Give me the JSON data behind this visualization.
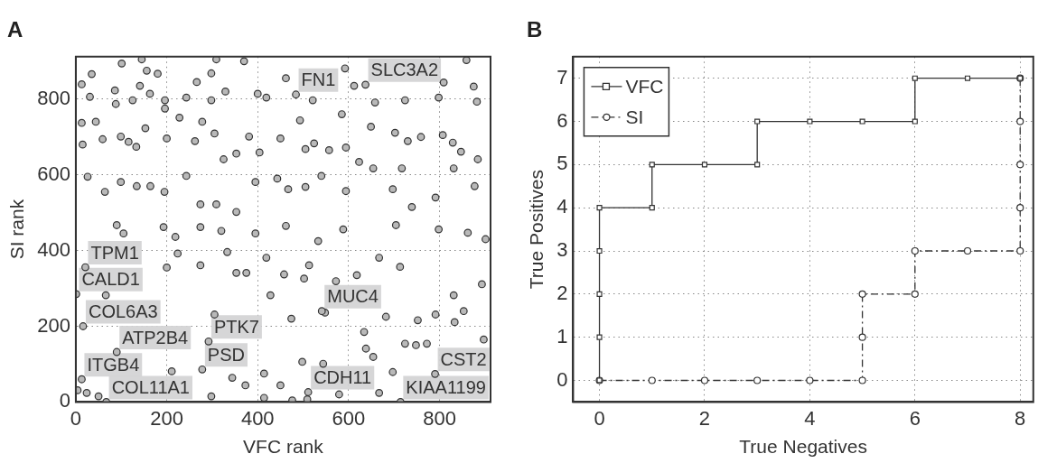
{
  "chart_data": [
    {
      "type": "scatter",
      "title": "A",
      "xlabel": "VFC rank",
      "ylabel": "SI rank",
      "color": "#b9b9b9",
      "marker": "circle",
      "xlim": [
        0,
        912
      ],
      "ylim": [
        0,
        912
      ],
      "xticks": [
        0,
        200,
        400,
        600,
        800
      ],
      "yticks": [
        0,
        200,
        400,
        600,
        800
      ],
      "grid": true,
      "x": [
        13,
        31,
        35,
        101,
        145,
        156,
        180,
        309,
        370,
        298,
        13,
        44,
        15,
        88,
        141,
        86,
        125,
        163,
        196,
        243,
        266,
        298,
        329,
        400,
        419,
        462,
        521,
        592,
        612,
        658,
        724,
        798,
        809,
        859,
        875,
        882,
        59,
        99,
        116,
        133,
        153,
        196,
        200,
        228,
        262,
        278,
        305,
        325,
        353,
        381,
        404,
        450,
        493,
        505,
        524,
        557,
        585,
        594,
        623,
        649,
        702,
        730,
        759,
        807,
        829,
        847,
        884,
        26,
        64,
        99,
        134,
        164,
        195,
        243,
        274,
        309,
        353,
        395,
        443,
        467,
        505,
        540,
        594,
        654,
        697,
        717,
        739,
        791,
        831,
        877,
        90,
        105,
        193,
        219,
        274,
        320,
        395,
        462,
        533,
        588,
        704,
        798,
        862,
        901,
        200,
        224,
        274,
        305,
        333,
        353,
        375,
        419,
        428,
        458,
        474,
        502,
        513,
        548,
        572,
        618,
        634,
        667,
        682,
        713,
        752,
        772,
        791,
        831,
        853,
        893,
        897,
        66,
        211,
        344,
        373,
        414,
        450,
        476,
        498,
        544,
        579,
        638,
        654,
        667,
        697,
        724,
        748,
        833,
        4,
        24,
        50,
        298,
        414,
        509,
        484,
        637,
        21,
        1,
        541,
        16,
        292,
        90,
        278,
        13,
        511,
        790,
        67,
        714
      ],
      "values": [
        839,
        806,
        866,
        894,
        905,
        875,
        867,
        905,
        900,
        868,
        737,
        740,
        680,
        787,
        835,
        823,
        797,
        814,
        797,
        804,
        845,
        797,
        820,
        814,
        804,
        855,
        797,
        881,
        835,
        791,
        797,
        804,
        844,
        903,
        833,
        793,
        694,
        701,
        687,
        674,
        723,
        775,
        696,
        751,
        689,
        740,
        709,
        641,
        656,
        701,
        659,
        696,
        744,
        668,
        683,
        665,
        760,
        672,
        634,
        727,
        711,
        689,
        700,
        705,
        685,
        661,
        641,
        595,
        555,
        581,
        570,
        570,
        555,
        597,
        522,
        522,
        502,
        581,
        590,
        562,
        568,
        597,
        557,
        617,
        562,
        617,
        515,
        540,
        617,
        570,
        467,
        445,
        462,
        436,
        462,
        452,
        445,
        465,
        425,
        456,
        467,
        456,
        447,
        430,
        355,
        392,
        361,
        231,
        396,
        341,
        341,
        381,
        282,
        337,
        220,
        326,
        361,
        236,
        319,
        335,
        185,
        381,
        225,
        357,
        216,
        154,
        231,
        282,
        240,
        311,
        165,
        282,
        81,
        64,
        44,
        75,
        44,
        4,
        106,
        101,
        20,
        141,
        119,
        24,
        79,
        154,
        150,
        211,
        31,
        24,
        15,
        15,
        11,
        7,
        812,
        838,
        356,
        285,
        240,
        200,
        160,
        132,
        86,
        60,
        26,
        74,
        0,
        0
      ],
      "annotations": [
        {
          "text": "FN1",
          "x": 484,
          "y": 812
        },
        {
          "text": "SLC3A2",
          "x": 637,
          "y": 838
        },
        {
          "text": "TPM1",
          "x": 21,
          "y": 356
        },
        {
          "text": "CALD1",
          "x": 1,
          "y": 285
        },
        {
          "text": "MUC4",
          "x": 541,
          "y": 240
        },
        {
          "text": "COL6A3",
          "x": 16,
          "y": 200
        },
        {
          "text": "PTK7",
          "x": 292,
          "y": 160
        },
        {
          "text": "ATP2B4",
          "x": 90,
          "y": 132
        },
        {
          "text": "PSD",
          "x": 278,
          "y": 86
        },
        {
          "text": "ITGB4",
          "x": 13,
          "y": 60
        },
        {
          "text": "CDH11",
          "x": 511,
          "y": 26
        },
        {
          "text": "CST2",
          "x": 790,
          "y": 74
        },
        {
          "text": "COL11A1",
          "x": 67,
          "y": 0
        },
        {
          "text": "KIAA1199",
          "x": 714,
          "y": 0
        }
      ]
    },
    {
      "type": "line",
      "title": "B",
      "xlabel": "True Negatives",
      "ylabel": "True Positives",
      "xlim": [
        -0.5,
        8.25
      ],
      "ylim": [
        -0.5,
        7.5
      ],
      "xticks": [
        0,
        2,
        4,
        6,
        8
      ],
      "yticks": [
        0,
        1,
        2,
        3,
        4,
        5,
        6,
        7
      ],
      "grid": true,
      "legend": "top left",
      "series": [
        {
          "name": "VFC",
          "color": "#333333",
          "marker": "square",
          "line_style": "solid",
          "x": [
            0,
            0,
            0,
            0,
            0,
            1,
            1,
            2,
            3,
            3,
            4,
            5,
            6,
            6,
            7,
            8
          ],
          "values": [
            0,
            1,
            2,
            3,
            4,
            4,
            5,
            5,
            5,
            6,
            6,
            6,
            6,
            7,
            7,
            7
          ]
        },
        {
          "name": "SI",
          "color": "#333333",
          "marker": "circle",
          "line_style": "dashed",
          "x": [
            0,
            1,
            2,
            3,
            4,
            5,
            5,
            5,
            6,
            6,
            7,
            8,
            8,
            8,
            8,
            8
          ],
          "values": [
            0,
            0,
            0,
            0,
            0,
            0,
            1,
            2,
            2,
            3,
            3,
            3,
            4,
            5,
            6,
            7
          ]
        }
      ]
    }
  ]
}
